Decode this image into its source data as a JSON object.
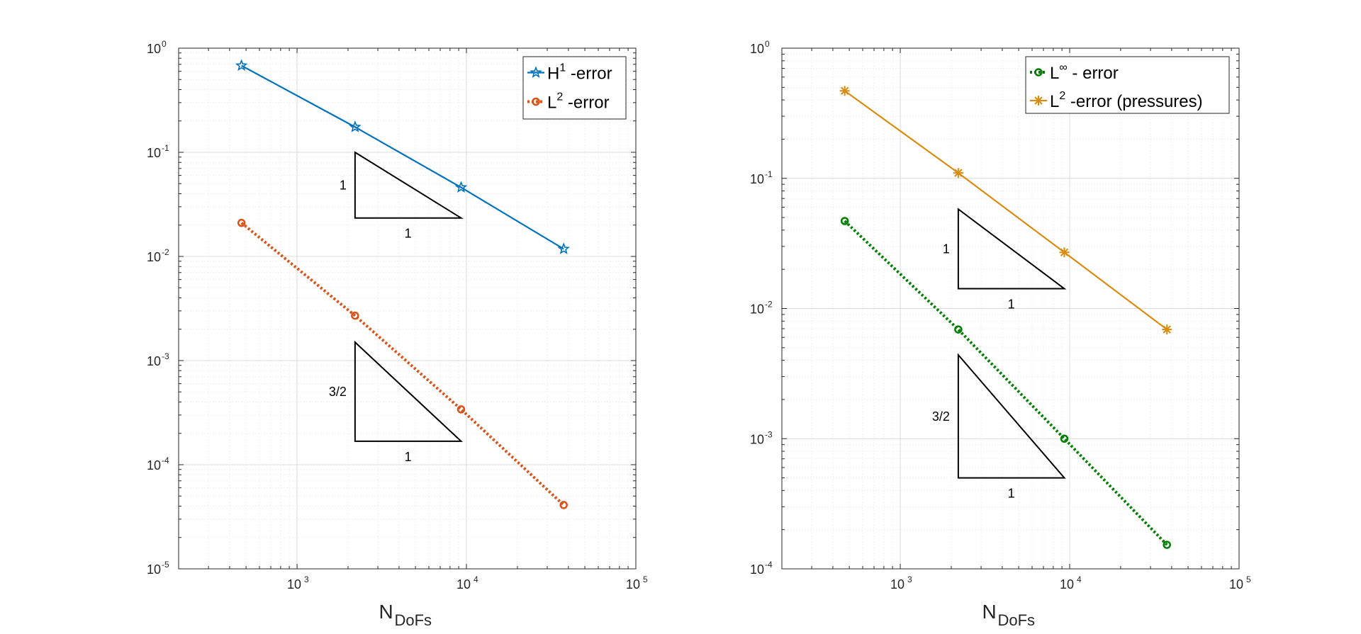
{
  "chart_data": [
    {
      "type": "line",
      "xscale": "log",
      "yscale": "log",
      "xlim": [
        200,
        100000
      ],
      "ylim": [
        1e-05,
        1
      ],
      "grid": true,
      "xlabel": {
        "main": "N",
        "sub": "DoFs"
      },
      "xticks": [
        {
          "base": "10",
          "exp": "3",
          "value": 1000
        },
        {
          "base": "10",
          "exp": "4",
          "value": 10000
        },
        {
          "base": "10",
          "exp": "5",
          "value": 100000
        }
      ],
      "yticks": [
        {
          "base": "10",
          "exp": "0",
          "value": 1
        },
        {
          "base": "10",
          "exp": "-1",
          "value": 0.1
        },
        {
          "base": "10",
          "exp": "-2",
          "value": 0.01
        },
        {
          "base": "10",
          "exp": "-3",
          "value": 0.001
        },
        {
          "base": "10",
          "exp": "-4",
          "value": 0.0001
        },
        {
          "base": "10",
          "exp": "-5",
          "value": 1e-05
        }
      ],
      "legend_position": "top-right",
      "series": [
        {
          "name": "H1 -error",
          "legend": {
            "pre": "H",
            "sup": "1",
            "post": " -error"
          },
          "color": "#0072BD",
          "style": "solid",
          "marker": "star",
          "x": [
            470,
            2200,
            9300,
            37500
          ],
          "y": [
            0.68,
            0.175,
            0.046,
            0.0118
          ]
        },
        {
          "name": "L2 -error",
          "legend": {
            "pre": "L",
            "sup": "2",
            "post": " -error"
          },
          "color": "#D95319",
          "style": "dotted",
          "marker": "circle",
          "x": [
            470,
            2200,
            9300,
            37500
          ],
          "y": [
            0.021,
            0.0027,
            0.00034,
            4.1e-05
          ]
        }
      ],
      "triangles": [
        {
          "vertical_label": "1",
          "horizontal_label": "1",
          "x_left": 2200,
          "x_right": 9300,
          "y_top": 0.1,
          "y_bottom": 0.0234
        },
        {
          "vertical_label": "3/2",
          "horizontal_label": "1",
          "x_left": 2200,
          "x_right": 9300,
          "y_top": 0.0015,
          "y_bottom": 0.000168
        }
      ]
    },
    {
      "type": "line",
      "xscale": "log",
      "yscale": "log",
      "xlim": [
        200,
        100000
      ],
      "ylim": [
        0.0001,
        1
      ],
      "grid": true,
      "xlabel": {
        "main": "N",
        "sub": "DoFs"
      },
      "xticks": [
        {
          "base": "10",
          "exp": "3",
          "value": 1000
        },
        {
          "base": "10",
          "exp": "4",
          "value": 10000
        },
        {
          "base": "10",
          "exp": "5",
          "value": 100000
        }
      ],
      "yticks": [
        {
          "base": "10",
          "exp": "0",
          "value": 1
        },
        {
          "base": "10",
          "exp": "-1",
          "value": 0.1
        },
        {
          "base": "10",
          "exp": "-2",
          "value": 0.01
        },
        {
          "base": "10",
          "exp": "-3",
          "value": 0.001
        },
        {
          "base": "10",
          "exp": "-4",
          "value": 0.0001
        }
      ],
      "legend_position": "top-right",
      "series": [
        {
          "name": "L∞ - error",
          "legend": {
            "pre": "L",
            "sup": "∞",
            "post": " - error"
          },
          "color": "#008000",
          "style": "dotted",
          "marker": "circle",
          "x": [
            470,
            2200,
            9300,
            37500
          ],
          "y": [
            0.047,
            0.0069,
            0.001,
            0.000153
          ]
        },
        {
          "name": "L2 -error (pressures)",
          "legend": {
            "pre": "L",
            "sup": "2",
            "post": " -error (pressures)"
          },
          "color": "#D98C0E",
          "style": "solid",
          "marker": "asterisk",
          "x": [
            470,
            2200,
            9300,
            37500
          ],
          "y": [
            0.47,
            0.11,
            0.027,
            0.0069
          ]
        }
      ],
      "triangles": [
        {
          "vertical_label": "1",
          "horizontal_label": "1",
          "x_left": 2200,
          "x_right": 9300,
          "y_top": 0.058,
          "y_bottom": 0.0142
        },
        {
          "vertical_label": "3/2",
          "horizontal_label": "1",
          "x_left": 2200,
          "x_right": 9300,
          "y_top": 0.0044,
          "y_bottom": 0.0005
        }
      ]
    }
  ]
}
